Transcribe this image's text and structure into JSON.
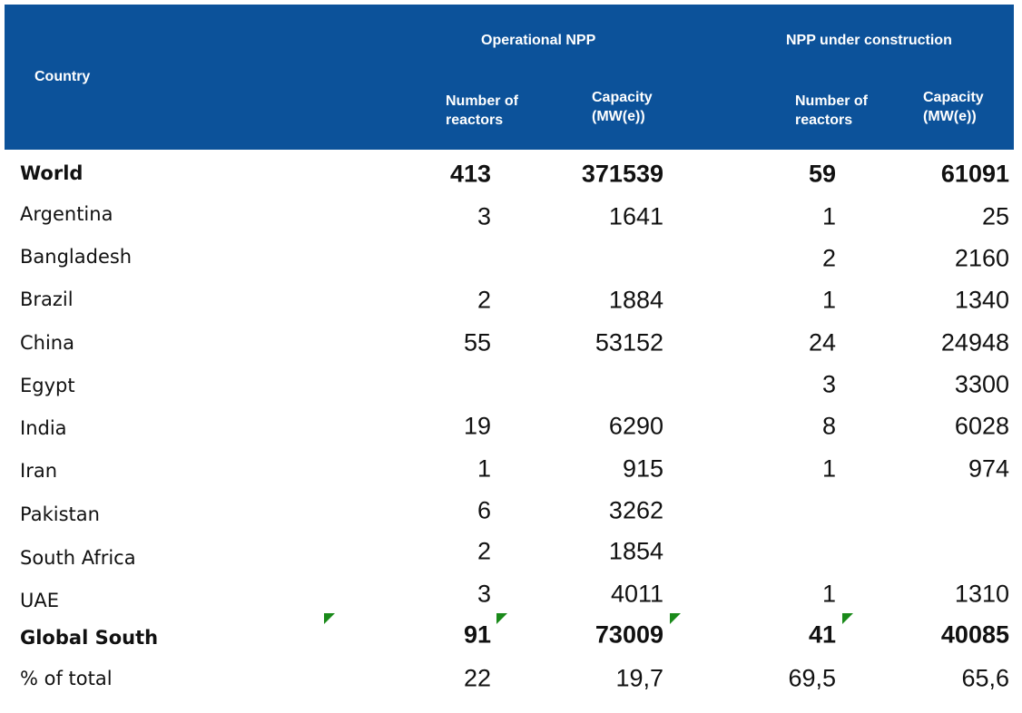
{
  "header": {
    "country": "Country",
    "groups": [
      "Operational NPP",
      "NPP under construction"
    ],
    "subheaders": [
      "Number of reactors",
      "Capacity (MW(e))",
      "Number of reactors",
      "Capacity (MW(e))"
    ]
  },
  "table": {
    "rows": [
      {
        "country": "World",
        "bold": true,
        "cells": [
          "413",
          "371539",
          "59",
          "61091"
        ]
      },
      {
        "country": "Argentina",
        "cells": [
          "3",
          "1641",
          "1",
          "25"
        ]
      },
      {
        "country": "Bangladesh",
        "cells": [
          null,
          null,
          "2",
          "2160"
        ]
      },
      {
        "country": "Brazil",
        "cells": [
          "2",
          "1884",
          "1",
          "1340"
        ]
      },
      {
        "country": "China",
        "cells": [
          "55",
          "53152",
          "24",
          "24948"
        ]
      },
      {
        "country": "Egypt",
        "cells": [
          null,
          null,
          "3",
          "3300"
        ]
      },
      {
        "country": "India",
        "cells": [
          "19",
          "6290",
          "8",
          "6028"
        ]
      },
      {
        "country": "Iran",
        "cells": [
          "1",
          "915",
          "1",
          "974"
        ]
      },
      {
        "country": "Pakistan",
        "cells": [
          "6",
          "3262",
          null,
          null
        ]
      },
      {
        "country": "South Africa",
        "cells": [
          "2",
          "1854",
          null,
          null
        ]
      },
      {
        "country": "UAE",
        "cells": [
          "3",
          "4011",
          "1",
          "1310"
        ]
      },
      {
        "country": "Global South",
        "bold": true,
        "cells": [
          "91",
          "73009",
          "41",
          "40085"
        ]
      },
      {
        "country": "% of total",
        "cells": [
          "22",
          "19,7",
          "69,5",
          "65,6"
        ]
      }
    ]
  }
}
